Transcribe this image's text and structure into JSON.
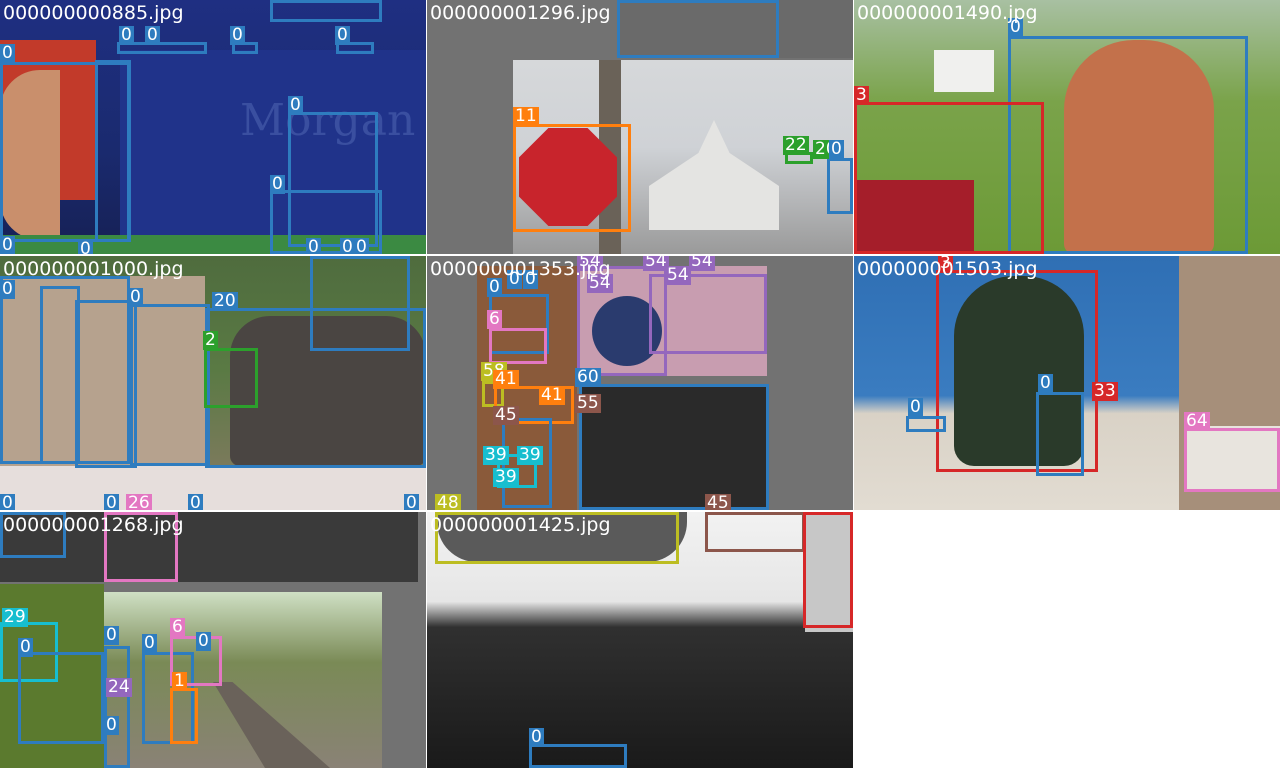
{
  "colors": {
    "c0": "#2e7cbf",
    "c2": "#2ca02c",
    "c3": "#d62728",
    "c11": "#ff7f0e",
    "c20": "#2e7cbf",
    "c22": "#2ca02c",
    "c24": "#9467bd",
    "c26": "#e377c2",
    "c29": "#17becf",
    "c33": "#d62728",
    "c39": "#17becf",
    "c41": "#ff7f0e",
    "c45": "#8c564b",
    "c48": "#bcbd22",
    "c54": "#9467bd",
    "c55": "#8c564b",
    "c60": "#2e7cbf",
    "c64": "#e377c2",
    "c6": "#e377c2",
    "c1": "#ff7f0e"
  },
  "tiles": [
    {
      "id": "t885",
      "name": "000000000885.jpg",
      "labels": [
        "0",
        "0",
        "0",
        "0",
        "0",
        "0",
        "0",
        "0",
        "0",
        "0",
        "0",
        "0"
      ]
    },
    {
      "id": "t1296",
      "name": "000000001296.jpg",
      "labels": [
        "11",
        "22",
        "20",
        "0"
      ]
    },
    {
      "id": "t1490",
      "name": "000000001490.jpg",
      "labels": [
        "0",
        "3"
      ]
    },
    {
      "id": "t1000",
      "name": "000000001000.jpg",
      "labels": [
        "20",
        "2",
        "0",
        "0",
        "0",
        "0",
        "0",
        "0",
        "26"
      ]
    },
    {
      "id": "t1353",
      "name": "000000001353.jpg",
      "labels": [
        "54",
        "54",
        "54",
        "54",
        "54",
        "0",
        "0",
        "0",
        "6",
        "58",
        "41",
        "41",
        "45",
        "55",
        "60",
        "39",
        "39",
        "39",
        "48",
        "45"
      ]
    },
    {
      "id": "t1503",
      "name": "000000001503.jpg",
      "labels": [
        "0",
        "0",
        "33",
        "64",
        "3"
      ]
    },
    {
      "id": "t1268",
      "name": "000000001268.jpg",
      "labels": [
        "29",
        "0",
        "0",
        "0",
        "6",
        "0",
        "24",
        "0",
        "1"
      ]
    },
    {
      "id": "t1425",
      "name": "000000001425.jpg",
      "labels": [
        "0"
      ]
    }
  ]
}
